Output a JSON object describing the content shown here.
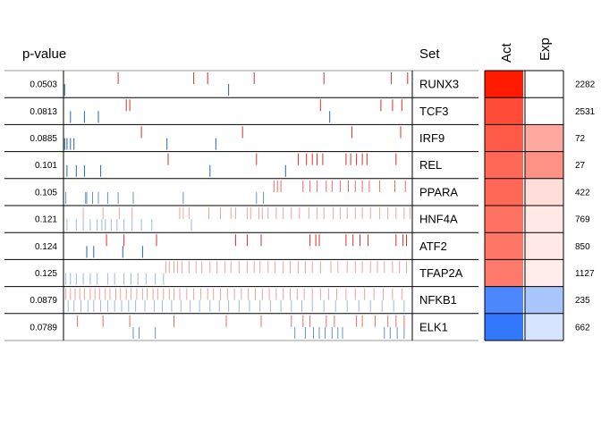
{
  "chart_data": {
    "type": "heatmap",
    "headers": {
      "pvalue": "p-value",
      "set": "Set",
      "act": "Act",
      "exp": "Exp"
    },
    "colors": {
      "up": "#d73027",
      "down": "#2166ac",
      "act_high": "#ff1a00",
      "act_low": "#3278ff"
    },
    "ranks_max": 3000,
    "rows": [
      {
        "set": "RUNX3",
        "pvalue": "0.0503",
        "act": 1.0,
        "exp": 0.0,
        "count": "2282",
        "up": [
          470,
          1120,
          1240,
          1640,
          2240,
          2820,
          2960
        ],
        "down": [
          10,
          1420
        ]
      },
      {
        "set": "TCF3",
        "pvalue": "0.0813",
        "act": 0.78,
        "exp": 0.0,
        "count": "2531",
        "up": [
          540,
          570,
          2210,
          2730,
          2830,
          2910
        ],
        "down": [
          60,
          180,
          300,
          2290
        ]
      },
      {
        "set": "IRF9",
        "pvalue": "0.0885",
        "act": 0.72,
        "exp": 0.38,
        "count": "72",
        "up": [
          670,
          1540,
          2480,
          2900
        ],
        "down": [
          10,
          30,
          60,
          90,
          890,
          1310
        ]
      },
      {
        "set": "REL",
        "pvalue": "0.101",
        "act": 0.66,
        "exp": 0.48,
        "count": "27",
        "up": [
          900,
          1660,
          2020,
          2090,
          2140,
          2180,
          2230,
          2430,
          2470,
          2520,
          2570,
          2610,
          2860
        ],
        "down": [
          30,
          110,
          180,
          320,
          1260,
          1910
        ]
      },
      {
        "set": "PPARA",
        "pvalue": "0.105",
        "act": 0.66,
        "exp": 0.15,
        "count": "422",
        "up": [
          1810,
          1840,
          1870,
          2060,
          2120,
          2180,
          2260,
          2310,
          2380,
          2450,
          2510,
          2570,
          2630,
          2720,
          2850,
          2940
        ],
        "down": [
          20,
          190,
          200,
          250,
          300,
          380,
          470,
          600,
          1030,
          1660,
          1720
        ]
      },
      {
        "set": "HNF4A",
        "pvalue": "0.121",
        "act": 0.62,
        "exp": 0.1,
        "count": "769",
        "up": [
          170,
          340,
          480,
          590,
          1000,
          1030,
          1080,
          1250,
          1350,
          1440,
          1480,
          1580,
          1610,
          1680,
          1710,
          1760,
          1830,
          1890,
          1960,
          2030,
          2110,
          2180,
          2240,
          2320,
          2380,
          2440,
          2510,
          2570,
          2640,
          2720,
          2790,
          2860,
          2930,
          2980
        ],
        "down": [
          30,
          110,
          170,
          230,
          290,
          330,
          360,
          410,
          460,
          520,
          590,
          670,
          760,
          1100
        ]
      },
      {
        "set": "ATF2",
        "pvalue": "0.124",
        "act": 0.6,
        "exp": 0.1,
        "count": "850",
        "up": [
          370,
          520,
          800,
          1480,
          1580,
          1700,
          2120,
          2170,
          2200,
          2430,
          2490,
          2550,
          2620,
          2860,
          2920,
          2950
        ],
        "down": [
          200,
          260,
          510,
          680
        ]
      },
      {
        "set": "TFAP2A",
        "pvalue": "0.125",
        "act": 0.58,
        "exp": 0.08,
        "count": "1127",
        "up": [
          880,
          910,
          950,
          980,
          1020,
          1080,
          1140,
          1190,
          1260,
          1320,
          1390,
          1440,
          1510,
          1580,
          1640,
          1690,
          1760,
          1820,
          1890,
          1950,
          2020,
          2080,
          2140,
          2210,
          2300,
          2360,
          2440,
          2510,
          2570,
          2640,
          2700,
          2760,
          2830,
          2890,
          2950
        ],
        "down": [
          20,
          60,
          110,
          170,
          230,
          290,
          380,
          440,
          520,
          580,
          640,
          710,
          790,
          860
        ]
      },
      {
        "set": "NFKB1",
        "pvalue": "0.0879",
        "act": -0.88,
        "exp": -0.42,
        "count": "235",
        "up": [
          20,
          60,
          100,
          140,
          180,
          230,
          270,
          310,
          360,
          400,
          450,
          490,
          540,
          580,
          630,
          680,
          720,
          770,
          810,
          860,
          910,
          950,
          1000,
          1060,
          1120,
          1180,
          1240,
          1290,
          1350,
          1410,
          1470,
          1530,
          1590,
          1650,
          1710,
          1770,
          1830,
          1890,
          1950,
          2010,
          2070,
          2140,
          2210,
          2280,
          2350,
          2430,
          2510,
          2590,
          2670,
          2750,
          2830,
          2910
        ],
        "down": [
          40,
          90,
          150,
          210,
          260,
          320,
          380,
          440,
          500,
          560,
          620,
          700,
          780,
          850,
          930,
          1010,
          1090,
          1170,
          1260,
          1340,
          1420,
          1510,
          1600,
          1690,
          1780,
          1870,
          1960,
          2050,
          2140,
          2240,
          2340,
          2440,
          2540,
          2640,
          2740,
          2840,
          2930
        ]
      },
      {
        "set": "ELK1",
        "pvalue": "0.0789",
        "act": -1.0,
        "exp": -0.2,
        "count": "662",
        "up": [
          120,
          340,
          570,
          950,
          1400,
          1700,
          1960,
          2060,
          2120,
          2260,
          2330,
          2520,
          2570,
          2680,
          2790,
          2860,
          2930
        ],
        "down": [
          600,
          650,
          790,
          1990,
          2080,
          2150,
          2200,
          2250,
          2310,
          2360,
          2400,
          2760,
          2810,
          2870,
          2930
        ]
      }
    ]
  }
}
